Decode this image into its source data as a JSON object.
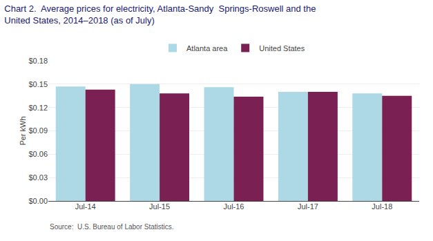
{
  "chart_data": {
    "type": "bar",
    "title": "Chart 2.  Average prices for electricity, Atlanta-Sandy  Springs-Roswell and the\nUnited States, 2014–2018 (as of July)",
    "ylabel": "Per kWh",
    "source": "Source:  U.S. Bureau of Labor Statistics.",
    "categories": [
      "Jul-14",
      "Jul-15",
      "Jul-16",
      "Jul-17",
      "Jul-18"
    ],
    "series": [
      {
        "name": "Atlanta area",
        "color": "#add8e6",
        "values": [
          0.147,
          0.15,
          0.146,
          0.14,
          0.138
        ]
      },
      {
        "name": "United States",
        "color": "#7b2052",
        "values": [
          0.143,
          0.138,
          0.134,
          0.14,
          0.135
        ]
      }
    ],
    "ylim": [
      0.0,
      0.18
    ],
    "yticks": [
      {
        "value": 0.0,
        "label": "$0.00"
      },
      {
        "value": 0.03,
        "label": "$0.03"
      },
      {
        "value": 0.06,
        "label": "$0.06"
      },
      {
        "value": 0.09,
        "label": "$0.09"
      },
      {
        "value": 0.12,
        "label": "$0.12"
      },
      {
        "value": 0.15,
        "label": "$0.15"
      },
      {
        "value": 0.18,
        "label": "$0.18"
      }
    ],
    "grid": true,
    "legend": "top"
  }
}
